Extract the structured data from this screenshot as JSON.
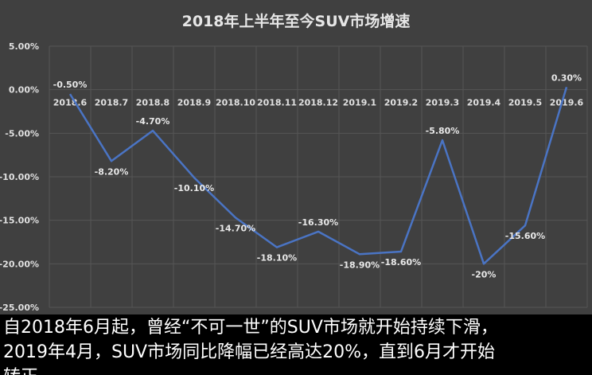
{
  "chart_data": {
    "type": "line",
    "title": "2018年上半年至今SUV市场增速",
    "categories": [
      "2018.6",
      "2018.7",
      "2018.8",
      "2018.9",
      "2018.10",
      "2018.11",
      "2018.12",
      "2019.1",
      "2019.2",
      "2019.3",
      "2019.4",
      "2019.5",
      "2019.6"
    ],
    "values": [
      -0.5,
      -8.2,
      -4.7,
      -10.1,
      -14.7,
      -18.1,
      -16.3,
      -18.9,
      -18.6,
      -5.8,
      -20,
      -15.6,
      0.3
    ],
    "data_labels": [
      "-0.50%",
      "-8.20%",
      "-4.70%",
      "-10.10%",
      "-14.70%",
      "-18.10%",
      "-16.30%",
      "-18.90%",
      "-18.60%",
      "-5.80%",
      "-20%",
      "-15.60%",
      "0.30%"
    ],
    "yticks": [
      "5.00%",
      "0.00%",
      "-5.00%",
      "-10.00%",
      "-15.00%",
      "-20.00%",
      "-25.00%"
    ],
    "ylim": [
      -25,
      5
    ],
    "grid": true,
    "line_color": "#4a74c4",
    "background": "#404040"
  },
  "caption": {
    "line1": "自2018年6月起，曾经“不可一世”的SUV市场就开始持续下滑，",
    "line2": "2019年4月，SUV市场同比降幅已经高达20%，直到6月才开始",
    "line3": "转正。"
  }
}
